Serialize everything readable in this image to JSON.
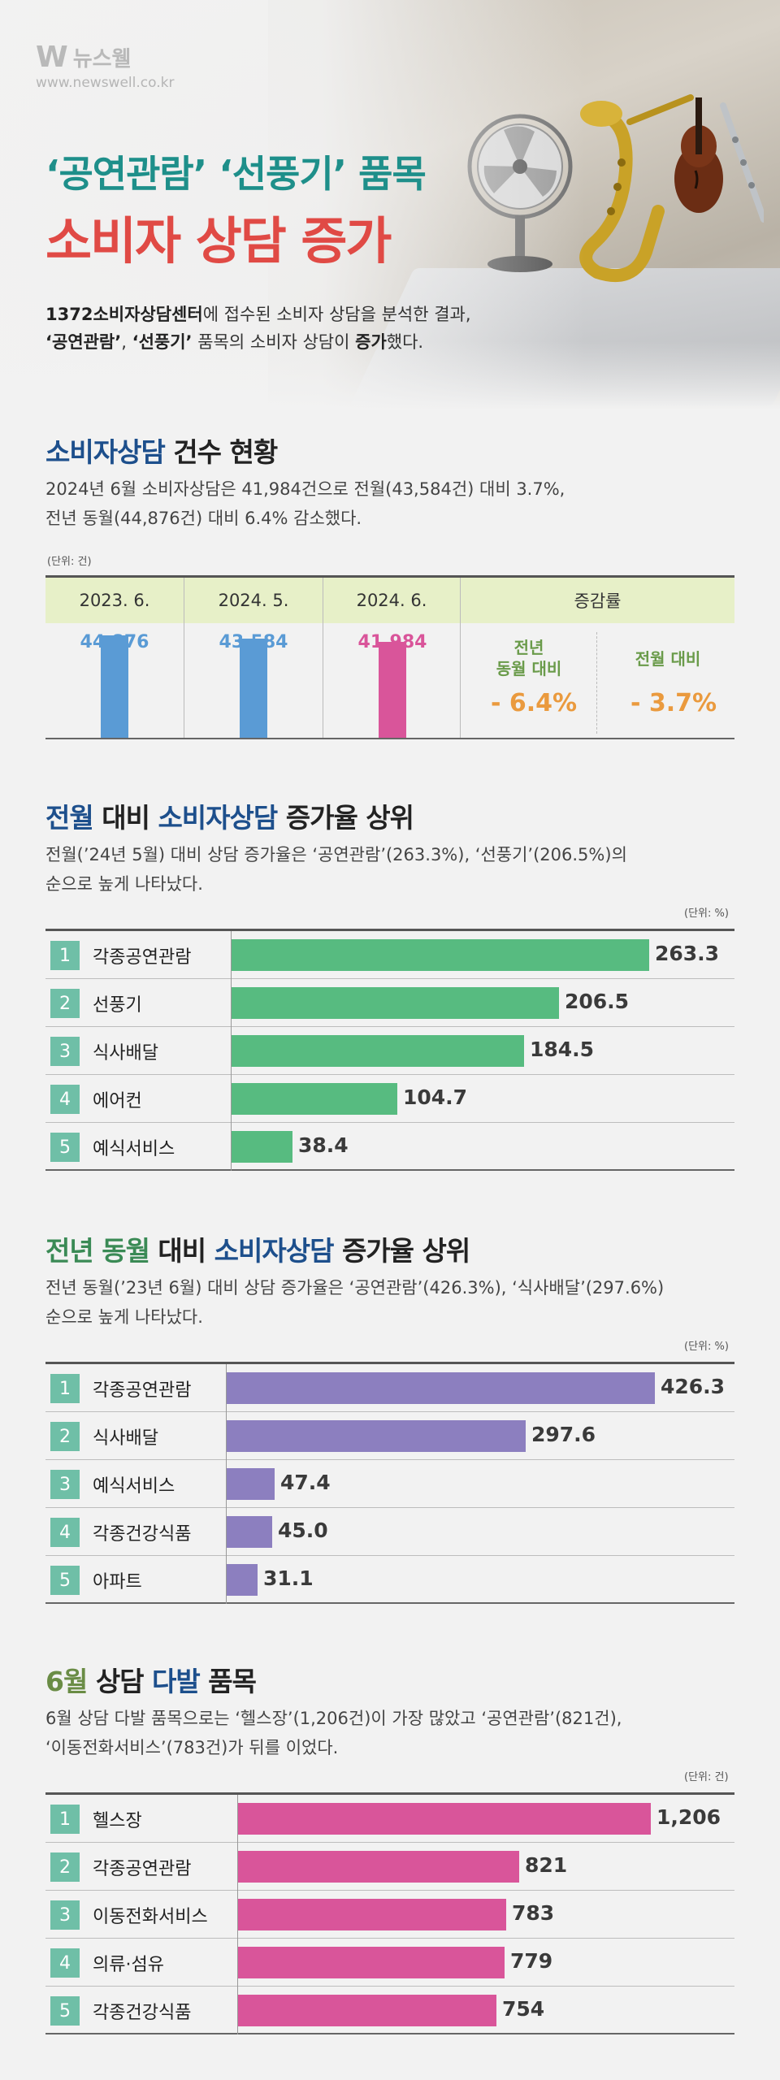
{
  "brand": {
    "name": "뉴스웰",
    "url": "www.newswell.co.kr"
  },
  "hero": {
    "title_line1": "‘공연관람’ ‘선풍기’ 품목",
    "title_line2": "소비자 상담 증가",
    "intro_strong1": "1372소비자상담센터",
    "intro_text1": "에 접수된 소비자 상담을 분석한 결과,",
    "intro_strong2": "‘공연관람’",
    "intro_text2": ", ",
    "intro_strong3": "‘선풍기’",
    "intro_text3": " 품목의 소비자 상담이 ",
    "intro_strong4": "증가",
    "intro_text4": "했다."
  },
  "section1": {
    "title_part1": "소비자상담",
    "title_part2": " 건수 현황",
    "desc_line1": "2024년 6월 소비자상담은 41,984건으로 전월(43,584건) 대비 3.7%,",
    "desc_line2": "전년 동월(44,876건) 대비 6.4% 감소했다.",
    "unit": "(단위: 건)",
    "rate_header": "증감률",
    "rate_yoy_label_1": "전년",
    "rate_yoy_label_2": "동월 대비",
    "rate_yoy_value": "- 6.4%",
    "rate_mom_label": "전월 대비",
    "rate_mom_value": "- 3.7%",
    "colors": {
      "blue": "#5a9bd5",
      "pink": "#d9559a",
      "header_bg": "#e7f0c8"
    }
  },
  "chart_data": [
    {
      "type": "bar",
      "title": "",
      "categories": [
        "2023. 6.",
        "2024. 5.",
        "2024. 6."
      ],
      "values": [
        44876,
        43584,
        41984
      ],
      "value_labels": [
        "44,876",
        "43,584",
        "41,984"
      ],
      "unit": "(단위: 건)"
    },
    {
      "type": "bar",
      "title": "전월 대비 소비자상담 증가율 상위",
      "categories": [
        "각종공연관람",
        "선풍기",
        "식사배달",
        "에어컨",
        "예식서비스"
      ],
      "values": [
        263.3,
        206.5,
        184.5,
        104.7,
        38.4
      ],
      "value_labels": [
        "263.3",
        "206.5",
        "184.5",
        "104.7",
        "38.4"
      ],
      "ranks": [
        "1",
        "2",
        "3",
        "4",
        "5"
      ],
      "unit": "(단위: %)",
      "color": "#57bb80"
    },
    {
      "type": "bar",
      "title": "전년 동월 대비 소비자상담 증가율 상위",
      "categories": [
        "각종공연관람",
        "식사배달",
        "예식서비스",
        "각종건강식품",
        "아파트"
      ],
      "values": [
        426.3,
        297.6,
        47.4,
        45.0,
        31.1
      ],
      "value_labels": [
        "426.3",
        "297.6",
        "47.4",
        "45.0",
        "31.1"
      ],
      "ranks": [
        "1",
        "2",
        "3",
        "4",
        "5"
      ],
      "unit": "(단위: %)",
      "color": "#8c7fbf"
    },
    {
      "type": "bar",
      "title": "6월 상담 다발 품목",
      "categories": [
        "헬스장",
        "각종공연관람",
        "이동전화서비스",
        "의류·섬유",
        "각종건강식품"
      ],
      "values": [
        1206,
        821,
        783,
        779,
        754
      ],
      "value_labels": [
        "1,206",
        "821",
        "783",
        "779",
        "754"
      ],
      "ranks": [
        "1",
        "2",
        "3",
        "4",
        "5"
      ],
      "unit": "(단위: 건)",
      "color": "#d9559a"
    }
  ],
  "section2": {
    "title_part1": "전월",
    "title_part2": " 대비 ",
    "title_part3": "소비자상담",
    "title_part4": " 증가율 상위",
    "desc_line1": "전월(’24년 5월) 대비 상담 증가율은 ‘공연관람’(263.3%), ‘선풍기’(206.5%)의",
    "desc_line2": "순으로 높게 나타났다."
  },
  "section3": {
    "title_part1": "전년 동월",
    "title_part2": " 대비 ",
    "title_part3": "소비자상담",
    "title_part4": " 증가율 상위",
    "desc_line1": "전년 동월(’23년 6월) 대비 상담 증가율은  ‘공연관람’(426.3%), ‘식사배달’(297.6%)",
    "desc_line2": "순으로 높게 나타났다."
  },
  "section4": {
    "title_part1": "6월",
    "title_part2": " 상담 ",
    "title_part3": "다발",
    "title_part4": " 품목",
    "desc_line1": "6월 상담 다발 품목으로는 ‘헬스장’(1,206건)이 가장 많았고 ‘공연관람’(821건),",
    "desc_line2": "‘이동전화서비스’(783건)가 뒤를 이었다."
  }
}
